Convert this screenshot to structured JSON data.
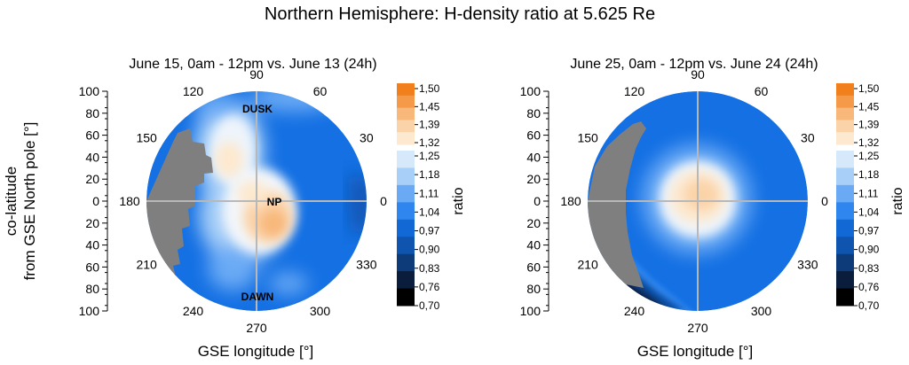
{
  "figure": {
    "title": "Northern Hemisphere: H-density ratio at 5.625 Re",
    "ylabel_line1": "co-latitude",
    "ylabel_line2": "from GSE North pole [°]"
  },
  "colors": {
    "high_scale": [
      "#fde9cf",
      "#fbd3a8",
      "#f8b87a",
      "#f59a48",
      "#f07f1c"
    ],
    "low_scale": [
      "#000000",
      "#0a1d3c",
      "#0d3a78",
      "#0f55b0",
      "#1269d6",
      "#2f86ee",
      "#6aaaf5",
      "#a7cff8",
      "#d6e9fb"
    ],
    "data_gap": "#7f7f7f",
    "crosshair": "#b8b8b8"
  },
  "chart_data": [
    {
      "type": "heatmap",
      "projection": "polar",
      "title": "June 15, 0am - 12pm vs. June 13 (24h)",
      "xlabel": "GSE longitude [°]",
      "ylabel": "co-latitude from GSE North pole [°]",
      "angle_ticks": [
        "0",
        "30",
        "60",
        "90",
        "120",
        "150",
        "180",
        "210",
        "240",
        "270",
        "300",
        "330"
      ],
      "radius_ticks": [
        "100",
        "80",
        "60",
        "40",
        "20",
        "0",
        "20",
        "40",
        "60",
        "80",
        "100"
      ],
      "rlim": [
        0,
        100
      ],
      "annotations": [
        "DUSK",
        "NP",
        "DAWN"
      ],
      "colorbar": {
        "label": "ratio",
        "ticks": [
          "1,50",
          "1,45",
          "1,39",
          "1,32",
          "1,25",
          "1,18",
          "1,11",
          "1,04",
          "0,97",
          "0,90",
          "0,83",
          "0,76",
          "0,70"
        ],
        "range": [
          0.7,
          1.5
        ]
      },
      "features": {
        "peak_ratio": 1.39,
        "background_ratio": 1.04,
        "data_gap_longitude": [
          150,
          215
        ]
      }
    },
    {
      "type": "heatmap",
      "projection": "polar",
      "title": "June 25, 0am - 12pm vs. June 24 (24h)",
      "xlabel": "GSE longitude [°]",
      "ylabel": "",
      "angle_ticks": [
        "0",
        "30",
        "60",
        "90",
        "120",
        "150",
        "180",
        "210",
        "240",
        "270",
        "300",
        "330"
      ],
      "radius_ticks": [
        "100",
        "80",
        "60",
        "40",
        "20",
        "0",
        "20",
        "40",
        "60",
        "80",
        "100"
      ],
      "rlim": [
        0,
        100
      ],
      "annotations": [],
      "colorbar": {
        "label": "ratio",
        "ticks": [
          "1,50",
          "1,45",
          "1,39",
          "1,32",
          "1,25",
          "1,18",
          "1,11",
          "1,04",
          "0,97",
          "0,90",
          "0,83",
          "0,76",
          "0,70"
        ],
        "range": [
          0.7,
          1.5
        ]
      },
      "features": {
        "peak_ratio": 1.35,
        "background_ratio": 1.04,
        "data_gap_longitude": [
          130,
          225
        ],
        "low_region_longitude": [
          215,
          280
        ]
      }
    }
  ]
}
